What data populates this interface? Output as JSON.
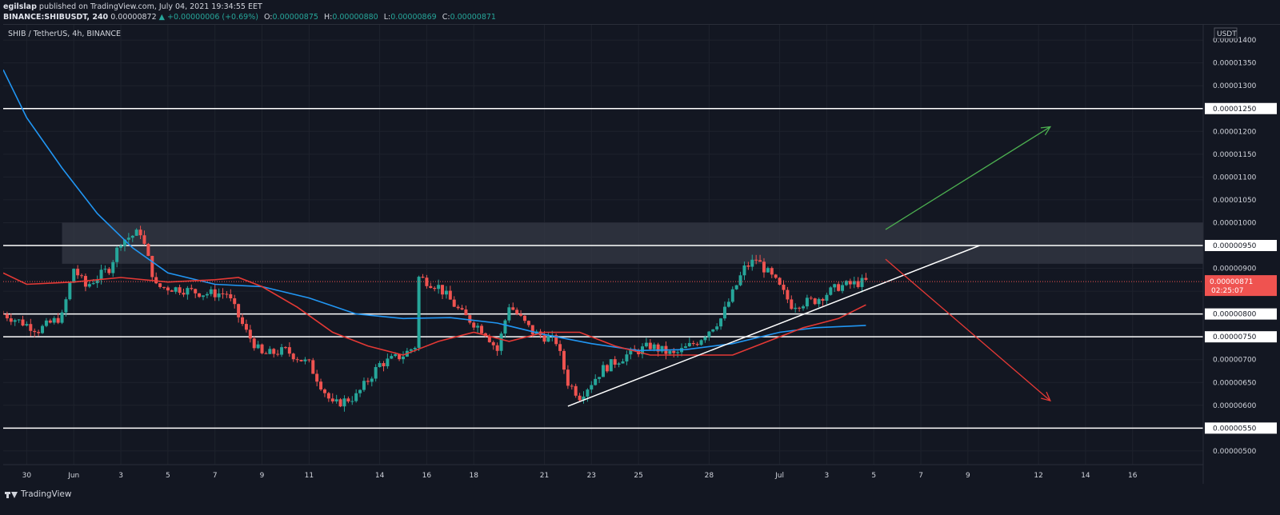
{
  "header": {
    "user": "egilslap",
    "published_text": "published on TradingView.com, July 04, 2021 19:34:55 EET",
    "symbol": "BINANCE:SHIBUSDT, 240",
    "price": "0.00000872",
    "change": "▲ +0.00000006 (+0.69%)",
    "o_label": "O:",
    "o_value": "0.00000875",
    "h_label": "H:",
    "h_value": "0.00000880",
    "l_label": "L:",
    "l_value": "0.00000869",
    "c_label": "C:",
    "c_value": "0.00000871"
  },
  "footer": {
    "brand": "TradingView"
  },
  "colors": {
    "background": "#131722",
    "up": "#26a69a",
    "down": "#ef5350",
    "ma_blue": "#2196f3",
    "ma_red": "#e53935",
    "level_line": "#ffffff",
    "zone": "#363a45",
    "arrow_up": "#4caf50",
    "arrow_down": "#e53935"
  },
  "chart_data": {
    "type": "candlestick",
    "title": "SHIB / TetherUS, 4h, BINANCE",
    "currency": "USDT",
    "ylim": [
      4.7e-06,
      1.43e-05
    ],
    "y_ticks": [
      "0.00001400",
      "0.00001350",
      "0.00001300",
      "0.00001250",
      "0.00001200",
      "0.00001150",
      "0.00001100",
      "0.00001050",
      "0.00001000",
      "0.00000950",
      "0.00000900",
      "0.00000850",
      "0.00000800",
      "0.00000750",
      "0.00000700",
      "0.00000650",
      "0.00000600",
      "0.00000550",
      "0.00000500"
    ],
    "x_ticks": [
      {
        "label": "30",
        "date": "2021-05-30"
      },
      {
        "label": "Jun",
        "date": "2021-06-01"
      },
      {
        "label": "3",
        "date": "2021-06-03"
      },
      {
        "label": "5",
        "date": "2021-06-05"
      },
      {
        "label": "7",
        "date": "2021-06-07"
      },
      {
        "label": "9",
        "date": "2021-06-09"
      },
      {
        "label": "11",
        "date": "2021-06-11"
      },
      {
        "label": "14",
        "date": "2021-06-14"
      },
      {
        "label": "16",
        "date": "2021-06-16"
      },
      {
        "label": "18",
        "date": "2021-06-18"
      },
      {
        "label": "21",
        "date": "2021-06-21"
      },
      {
        "label": "23",
        "date": "2021-06-23"
      },
      {
        "label": "25",
        "date": "2021-06-25"
      },
      {
        "label": "28",
        "date": "2021-06-28"
      },
      {
        "label": "Jul",
        "date": "2021-07-01"
      },
      {
        "label": "3",
        "date": "2021-07-03"
      },
      {
        "label": "5",
        "date": "2021-07-05"
      },
      {
        "label": "7",
        "date": "2021-07-07"
      },
      {
        "label": "9",
        "date": "2021-07-09"
      },
      {
        "label": "12",
        "date": "2021-07-12"
      },
      {
        "label": "14",
        "date": "2021-07-14"
      },
      {
        "label": "16",
        "date": "2021-07-16"
      }
    ],
    "price_anchors": [
      {
        "date": "2021-05-29 00:00",
        "close": 8e-06
      },
      {
        "date": "2021-05-30 12:00",
        "close": 7.65e-06
      },
      {
        "date": "2021-05-31 12:00",
        "close": 7.95e-06
      },
      {
        "date": "2021-06-01 00:00",
        "close": 9e-06
      },
      {
        "date": "2021-06-01 12:00",
        "close": 8.6e-06
      },
      {
        "date": "2021-06-02 12:00",
        "close": 9e-06
      },
      {
        "date": "2021-06-03 00:00",
        "close": 9.6e-06
      },
      {
        "date": "2021-06-03 20:00",
        "close": 9.8e-06
      },
      {
        "date": "2021-06-04 12:00",
        "close": 8.6e-06
      },
      {
        "date": "2021-06-05 12:00",
        "close": 8.55e-06
      },
      {
        "date": "2021-06-06 12:00",
        "close": 8.45e-06
      },
      {
        "date": "2021-06-07 12:00",
        "close": 8.45e-06
      },
      {
        "date": "2021-06-08 08:00",
        "close": 7.6e-06
      },
      {
        "date": "2021-06-09 00:00",
        "close": 7.1e-06
      },
      {
        "date": "2021-06-10 00:00",
        "close": 7.2e-06
      },
      {
        "date": "2021-06-11 00:00",
        "close": 6.9e-06
      },
      {
        "date": "2021-06-12 00:00",
        "close": 6e-06
      },
      {
        "date": "2021-06-13 00:00",
        "close": 6.2e-06
      },
      {
        "date": "2021-06-14 00:00",
        "close": 6.9e-06
      },
      {
        "date": "2021-06-15 00:00",
        "close": 7.1e-06
      },
      {
        "date": "2021-06-15 12:00",
        "close": 7.3e-06
      },
      {
        "date": "2021-06-15 16:00",
        "close": 8.8e-06
      },
      {
        "date": "2021-06-16 12:00",
        "close": 8.6e-06
      },
      {
        "date": "2021-06-17 12:00",
        "close": 8e-06
      },
      {
        "date": "2021-06-18 12:00",
        "close": 7.6e-06
      },
      {
        "date": "2021-06-19 00:00",
        "close": 7.2e-06
      },
      {
        "date": "2021-06-19 12:00",
        "close": 8.2e-06
      },
      {
        "date": "2021-06-20 12:00",
        "close": 7.6e-06
      },
      {
        "date": "2021-06-21 12:00",
        "close": 7.4e-06
      },
      {
        "date": "2021-06-22 00:00",
        "close": 6.5e-06
      },
      {
        "date": "2021-06-22 12:00",
        "close": 6.2e-06
      },
      {
        "date": "2021-06-23 12:00",
        "close": 6.8e-06
      },
      {
        "date": "2021-06-24 12:00",
        "close": 7.1e-06
      },
      {
        "date": "2021-06-25 12:00",
        "close": 7.3e-06
      },
      {
        "date": "2021-06-26 12:00",
        "close": 7.1e-06
      },
      {
        "date": "2021-06-27 12:00",
        "close": 7.4e-06
      },
      {
        "date": "2021-06-28 12:00",
        "close": 7.9e-06
      },
      {
        "date": "2021-06-29 12:00",
        "close": 9e-06
      },
      {
        "date": "2021-06-30 00:00",
        "close": 9.2e-06
      },
      {
        "date": "2021-06-30 20:00",
        "close": 8.7e-06
      },
      {
        "date": "2021-07-01 12:00",
        "close": 8.2e-06
      },
      {
        "date": "2021-07-02 12:00",
        "close": 8.3e-06
      },
      {
        "date": "2021-07-03 12:00",
        "close": 8.6e-06
      },
      {
        "date": "2021-07-04 16:00",
        "close": 8.71e-06
      }
    ],
    "blue_ma_anchors": [
      {
        "date": "2021-05-29 00:00",
        "value": 1.335e-05
      },
      {
        "date": "2021-05-30 00:00",
        "value": 1.23e-05
      },
      {
        "date": "2021-05-31 12:00",
        "value": 1.12e-05
      },
      {
        "date": "2021-06-02 00:00",
        "value": 1.02e-05
      },
      {
        "date": "2021-06-03 12:00",
        "value": 9.45e-06
      },
      {
        "date": "2021-06-05 00:00",
        "value": 8.9e-06
      },
      {
        "date": "2021-06-07 00:00",
        "value": 8.65e-06
      },
      {
        "date": "2021-06-09 00:00",
        "value": 8.6e-06
      },
      {
        "date": "2021-06-11 00:00",
        "value": 8.35e-06
      },
      {
        "date": "2021-06-13 00:00",
        "value": 8e-06
      },
      {
        "date": "2021-06-15 00:00",
        "value": 7.9e-06
      },
      {
        "date": "2021-06-17 00:00",
        "value": 7.92e-06
      },
      {
        "date": "2021-06-19 00:00",
        "value": 7.8e-06
      },
      {
        "date": "2021-06-21 00:00",
        "value": 7.55e-06
      },
      {
        "date": "2021-06-23 00:00",
        "value": 7.35e-06
      },
      {
        "date": "2021-06-25 00:00",
        "value": 7.2e-06
      },
      {
        "date": "2021-06-27 00:00",
        "value": 7.22e-06
      },
      {
        "date": "2021-06-29 00:00",
        "value": 7.35e-06
      },
      {
        "date": "2021-07-01 00:00",
        "value": 7.6e-06
      },
      {
        "date": "2021-07-02 12:00",
        "value": 7.7e-06
      },
      {
        "date": "2021-07-04 16:00",
        "value": 7.75e-06
      }
    ],
    "red_ma_anchors": [
      {
        "date": "2021-05-29 00:00",
        "value": 8.9e-06
      },
      {
        "date": "2021-05-30 00:00",
        "value": 8.65e-06
      },
      {
        "date": "2021-06-01 00:00",
        "value": 8.7e-06
      },
      {
        "date": "2021-06-03 00:00",
        "value": 8.8e-06
      },
      {
        "date": "2021-06-05 00:00",
        "value": 8.7e-06
      },
      {
        "date": "2021-06-07 00:00",
        "value": 8.75e-06
      },
      {
        "date": "2021-06-08 00:00",
        "value": 8.8e-06
      },
      {
        "date": "2021-06-09 00:00",
        "value": 8.6e-06
      },
      {
        "date": "2021-06-10 12:00",
        "value": 8.15e-06
      },
      {
        "date": "2021-06-12 00:00",
        "value": 7.6e-06
      },
      {
        "date": "2021-06-13 12:00",
        "value": 7.3e-06
      },
      {
        "date": "2021-06-15 00:00",
        "value": 7.1e-06
      },
      {
        "date": "2021-06-16 12:00",
        "value": 7.4e-06
      },
      {
        "date": "2021-06-18 00:00",
        "value": 7.6e-06
      },
      {
        "date": "2021-06-19 12:00",
        "value": 7.4e-06
      },
      {
        "date": "2021-06-21 00:00",
        "value": 7.6e-06
      },
      {
        "date": "2021-06-22 12:00",
        "value": 7.6e-06
      },
      {
        "date": "2021-06-24 00:00",
        "value": 7.3e-06
      },
      {
        "date": "2021-06-25 12:00",
        "value": 7.1e-06
      },
      {
        "date": "2021-06-27 00:00",
        "value": 7.1e-06
      },
      {
        "date": "2021-06-29 00:00",
        "value": 7.1e-06
      },
      {
        "date": "2021-06-30 12:00",
        "value": 7.4e-06
      },
      {
        "date": "2021-07-02 00:00",
        "value": 7.7e-06
      },
      {
        "date": "2021-07-03 12:00",
        "value": 7.9e-06
      },
      {
        "date": "2021-07-04 16:00",
        "value": 8.2e-06
      }
    ],
    "horizontal_levels": [
      1.25e-05,
      9.5e-06,
      8e-06,
      7.5e-06,
      5.5e-06
    ],
    "resistance_zone": [
      9.1e-06,
      1e-05
    ],
    "trendline": {
      "start": {
        "date": "2021-06-22 00:00",
        "price": 5.98e-06
      },
      "end": {
        "date": "2021-07-09 12:00",
        "price": 9.5e-06
      }
    },
    "arrow_up": {
      "start": {
        "date": "2021-07-05 12:00",
        "price": 9.85e-06
      },
      "end": {
        "date": "2021-07-12 12:00",
        "price": 1.21e-05
      }
    },
    "arrow_down": {
      "start": {
        "date": "2021-07-05 12:00",
        "price": 9.2e-06
      },
      "end": {
        "date": "2021-07-12 12:00",
        "price": 6.1e-06
      }
    },
    "last_price": {
      "value": "0.00000871",
      "countdown": "02:25:07"
    }
  }
}
